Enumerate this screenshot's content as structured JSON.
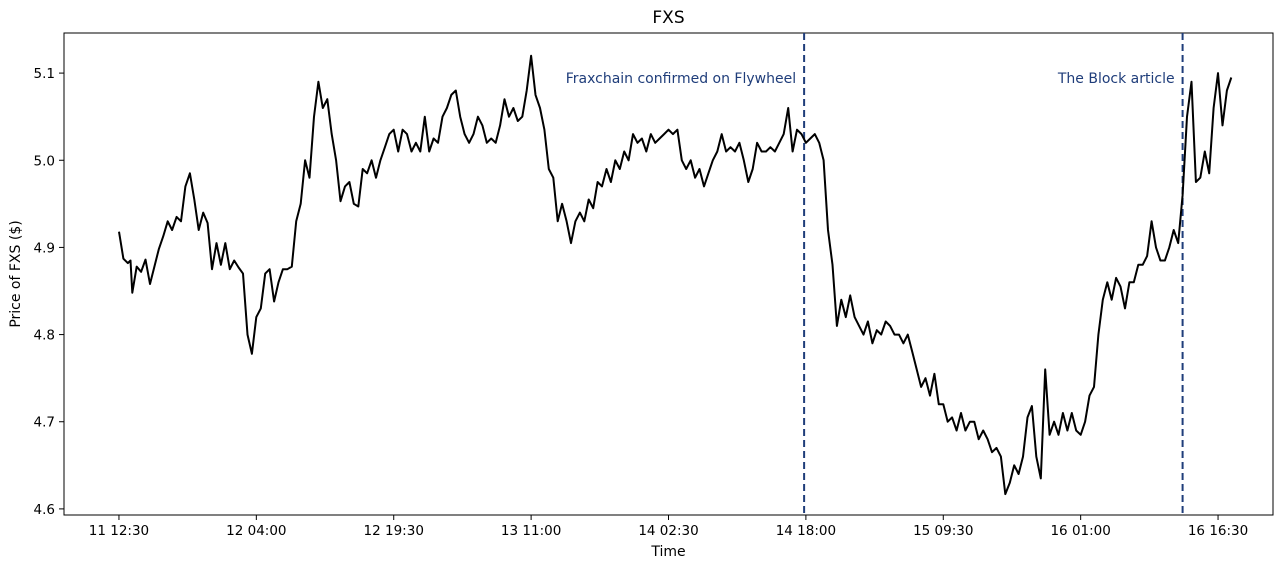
{
  "chart_data": {
    "type": "line",
    "title": "FXS",
    "xlabel": "Time",
    "ylabel": "Price of FXS ($)",
    "x_tick_labels": [
      "11 12:30",
      "12 04:00",
      "12 19:30",
      "13 11:00",
      "14 02:30",
      "14 18:00",
      "15 09:30",
      "16 01:00",
      "16 16:30"
    ],
    "x_tick_hours": [
      0,
      15.5,
      31,
      46.5,
      62,
      77.5,
      93,
      108.5,
      124
    ],
    "y_ticks": [
      4.6,
      4.7,
      4.8,
      4.9,
      5.0,
      5.1
    ],
    "y_tick_labels": [
      "4.6",
      "4.7",
      "4.8",
      "4.9",
      "5.0",
      "5.1"
    ],
    "xlim_hours": [
      -6.2,
      130.2
    ],
    "ylim": [
      4.593,
      5.146
    ],
    "grid": false,
    "line_color": "#000000",
    "annotation_color": "#1f3d7a",
    "series": [
      {
        "points_hours_price": [
          [
            0,
            4.918
          ],
          [
            0.5,
            4.887
          ],
          [
            1,
            4.882
          ],
          [
            1.3,
            4.885
          ],
          [
            1.5,
            4.848
          ],
          [
            2,
            4.878
          ],
          [
            2.5,
            4.872
          ],
          [
            3,
            4.886
          ],
          [
            3.5,
            4.858
          ],
          [
            4,
            4.878
          ],
          [
            4.5,
            4.898
          ],
          [
            5,
            4.913
          ],
          [
            5.5,
            4.93
          ],
          [
            6,
            4.92
          ],
          [
            6.5,
            4.935
          ],
          [
            7,
            4.93
          ],
          [
            7.5,
            4.97
          ],
          [
            8,
            4.985
          ],
          [
            8.5,
            4.955
          ],
          [
            9,
            4.92
          ],
          [
            9.5,
            4.94
          ],
          [
            10,
            4.928
          ],
          [
            10.5,
            4.875
          ],
          [
            11,
            4.905
          ],
          [
            11.5,
            4.88
          ],
          [
            12,
            4.905
          ],
          [
            12.5,
            4.875
          ],
          [
            13,
            4.885
          ],
          [
            13.5,
            4.877
          ],
          [
            14,
            4.87
          ],
          [
            14.5,
            4.8
          ],
          [
            15,
            4.778
          ],
          [
            15.5,
            4.82
          ],
          [
            16,
            4.83
          ],
          [
            16.5,
            4.87
          ],
          [
            17,
            4.875
          ],
          [
            17.5,
            4.838
          ],
          [
            18,
            4.86
          ],
          [
            18.5,
            4.875
          ],
          [
            19,
            4.875
          ],
          [
            19.5,
            4.878
          ],
          [
            20,
            4.93
          ],
          [
            20.5,
            4.95
          ],
          [
            21,
            5.0
          ],
          [
            21.5,
            4.98
          ],
          [
            22,
            5.05
          ],
          [
            22.5,
            5.09
          ],
          [
            23,
            5.06
          ],
          [
            23.5,
            5.07
          ],
          [
            24,
            5.03
          ],
          [
            24.5,
            5.0
          ],
          [
            25,
            4.953
          ],
          [
            25.5,
            4.97
          ],
          [
            26,
            4.975
          ],
          [
            26.5,
            4.95
          ],
          [
            27,
            4.947
          ],
          [
            27.5,
            4.99
          ],
          [
            28,
            4.985
          ],
          [
            28.5,
            5.0
          ],
          [
            29,
            4.98
          ],
          [
            29.5,
            5.0
          ],
          [
            30,
            5.015
          ],
          [
            30.5,
            5.03
          ],
          [
            31,
            5.035
          ],
          [
            31.5,
            5.01
          ],
          [
            32,
            5.035
          ],
          [
            32.5,
            5.03
          ],
          [
            33,
            5.01
          ],
          [
            33.5,
            5.02
          ],
          [
            34,
            5.01
          ],
          [
            34.5,
            5.05
          ],
          [
            35,
            5.01
          ],
          [
            35.5,
            5.025
          ],
          [
            36,
            5.02
          ],
          [
            36.5,
            5.05
          ],
          [
            37,
            5.06
          ],
          [
            37.5,
            5.075
          ],
          [
            38,
            5.08
          ],
          [
            38.5,
            5.05
          ],
          [
            39,
            5.03
          ],
          [
            39.5,
            5.02
          ],
          [
            40,
            5.03
          ],
          [
            40.5,
            5.05
          ],
          [
            41,
            5.04
          ],
          [
            41.5,
            5.02
          ],
          [
            42,
            5.025
          ],
          [
            42.5,
            5.02
          ],
          [
            43,
            5.04
          ],
          [
            43.5,
            5.07
          ],
          [
            44,
            5.05
          ],
          [
            44.5,
            5.06
          ],
          [
            45,
            5.045
          ],
          [
            45.5,
            5.05
          ],
          [
            46,
            5.08
          ],
          [
            46.5,
            5.12
          ],
          [
            47,
            5.075
          ],
          [
            47.5,
            5.06
          ],
          [
            48,
            5.035
          ],
          [
            48.5,
            4.99
          ],
          [
            49,
            4.98
          ],
          [
            49.5,
            4.93
          ],
          [
            50,
            4.95
          ],
          [
            50.5,
            4.93
          ],
          [
            51,
            4.905
          ],
          [
            51.5,
            4.93
          ],
          [
            52,
            4.94
          ],
          [
            52.5,
            4.93
          ],
          [
            53,
            4.955
          ],
          [
            53.5,
            4.945
          ],
          [
            54,
            4.975
          ],
          [
            54.5,
            4.97
          ],
          [
            55,
            4.99
          ],
          [
            55.5,
            4.975
          ],
          [
            56,
            5.0
          ],
          [
            56.5,
            4.99
          ],
          [
            57,
            5.01
          ],
          [
            57.5,
            5.0
          ],
          [
            58,
            5.03
          ],
          [
            58.5,
            5.02
          ],
          [
            59,
            5.025
          ],
          [
            59.5,
            5.01
          ],
          [
            60,
            5.03
          ],
          [
            60.5,
            5.02
          ],
          [
            61,
            5.025
          ],
          [
            61.5,
            5.03
          ],
          [
            62,
            5.035
          ],
          [
            62.5,
            5.03
          ],
          [
            63,
            5.035
          ],
          [
            63.5,
            5.0
          ],
          [
            64,
            4.99
          ],
          [
            64.5,
            5.0
          ],
          [
            65,
            4.98
          ],
          [
            65.5,
            4.99
          ],
          [
            66,
            4.97
          ],
          [
            66.5,
            4.985
          ],
          [
            67,
            5.0
          ],
          [
            67.5,
            5.01
          ],
          [
            68,
            5.03
          ],
          [
            68.5,
            5.01
          ],
          [
            69,
            5.015
          ],
          [
            69.5,
            5.01
          ],
          [
            70,
            5.02
          ],
          [
            70.5,
            5.0
          ],
          [
            71,
            4.975
          ],
          [
            71.5,
            4.99
          ],
          [
            72,
            5.02
          ],
          [
            72.5,
            5.01
          ],
          [
            73,
            5.01
          ],
          [
            73.5,
            5.015
          ],
          [
            74,
            5.01
          ],
          [
            74.5,
            5.02
          ],
          [
            75,
            5.03
          ],
          [
            75.5,
            5.06
          ],
          [
            76,
            5.01
          ],
          [
            76.5,
            5.035
          ],
          [
            77,
            5.03
          ],
          [
            77.5,
            5.02
          ],
          [
            78,
            5.025
          ],
          [
            78.5,
            5.03
          ],
          [
            79,
            5.02
          ],
          [
            79.5,
            5.0
          ],
          [
            80,
            4.92
          ],
          [
            80.5,
            4.88
          ],
          [
            81,
            4.81
          ],
          [
            81.5,
            4.84
          ],
          [
            82,
            4.82
          ],
          [
            82.5,
            4.845
          ],
          [
            83,
            4.82
          ],
          [
            83.5,
            4.81
          ],
          [
            84,
            4.8
          ],
          [
            84.5,
            4.815
          ],
          [
            85,
            4.79
          ],
          [
            85.5,
            4.805
          ],
          [
            86,
            4.8
          ],
          [
            86.5,
            4.815
          ],
          [
            87,
            4.81
          ],
          [
            87.5,
            4.8
          ],
          [
            88,
            4.8
          ],
          [
            88.5,
            4.79
          ],
          [
            89,
            4.8
          ],
          [
            89.5,
            4.78
          ],
          [
            90,
            4.76
          ],
          [
            90.5,
            4.74
          ],
          [
            91,
            4.75
          ],
          [
            91.5,
            4.73
          ],
          [
            92,
            4.755
          ],
          [
            92.5,
            4.72
          ],
          [
            93,
            4.72
          ],
          [
            93.5,
            4.7
          ],
          [
            94,
            4.705
          ],
          [
            94.5,
            4.69
          ],
          [
            95,
            4.71
          ],
          [
            95.5,
            4.69
          ],
          [
            96,
            4.7
          ],
          [
            96.5,
            4.7
          ],
          [
            97,
            4.68
          ],
          [
            97.5,
            4.69
          ],
          [
            98,
            4.68
          ],
          [
            98.5,
            4.665
          ],
          [
            99,
            4.67
          ],
          [
            99.5,
            4.66
          ],
          [
            100,
            4.617
          ],
          [
            100.5,
            4.63
          ],
          [
            101,
            4.65
          ],
          [
            101.5,
            4.64
          ],
          [
            102,
            4.66
          ],
          [
            102.5,
            4.705
          ],
          [
            103,
            4.718
          ],
          [
            103.5,
            4.66
          ],
          [
            104,
            4.635
          ],
          [
            104.5,
            4.76
          ],
          [
            105,
            4.685
          ],
          [
            105.5,
            4.7
          ],
          [
            106,
            4.685
          ],
          [
            106.5,
            4.71
          ],
          [
            107,
            4.69
          ],
          [
            107.5,
            4.71
          ],
          [
            108,
            4.69
          ],
          [
            108.5,
            4.685
          ],
          [
            109,
            4.7
          ],
          [
            109.5,
            4.73
          ],
          [
            110,
            4.74
          ],
          [
            110.5,
            4.8
          ],
          [
            111,
            4.84
          ],
          [
            111.5,
            4.86
          ],
          [
            112,
            4.84
          ],
          [
            112.5,
            4.865
          ],
          [
            113,
            4.855
          ],
          [
            113.5,
            4.83
          ],
          [
            114,
            4.86
          ],
          [
            114.5,
            4.86
          ],
          [
            115,
            4.88
          ],
          [
            115.5,
            4.88
          ],
          [
            116,
            4.89
          ],
          [
            116.5,
            4.93
          ],
          [
            117,
            4.9
          ],
          [
            117.5,
            4.885
          ],
          [
            118,
            4.885
          ],
          [
            118.5,
            4.9
          ],
          [
            119,
            4.92
          ],
          [
            119.5,
            4.905
          ],
          [
            120,
            4.96
          ],
          [
            120.5,
            5.05
          ],
          [
            121,
            5.09
          ],
          [
            121.5,
            4.975
          ],
          [
            122,
            4.98
          ],
          [
            122.5,
            5.01
          ],
          [
            123,
            4.985
          ],
          [
            123.5,
            5.06
          ],
          [
            124,
            5.1
          ],
          [
            124.5,
            5.04
          ],
          [
            125,
            5.08
          ],
          [
            125.5,
            5.095
          ]
        ]
      }
    ],
    "annotations": [
      {
        "label": "Fraxchain confirmed on Flywheel",
        "x_hours": 77.3,
        "style": "dashed-vertical"
      },
      {
        "label": "The Block article",
        "x_hours": 120.0,
        "style": "dashed-vertical"
      }
    ]
  }
}
